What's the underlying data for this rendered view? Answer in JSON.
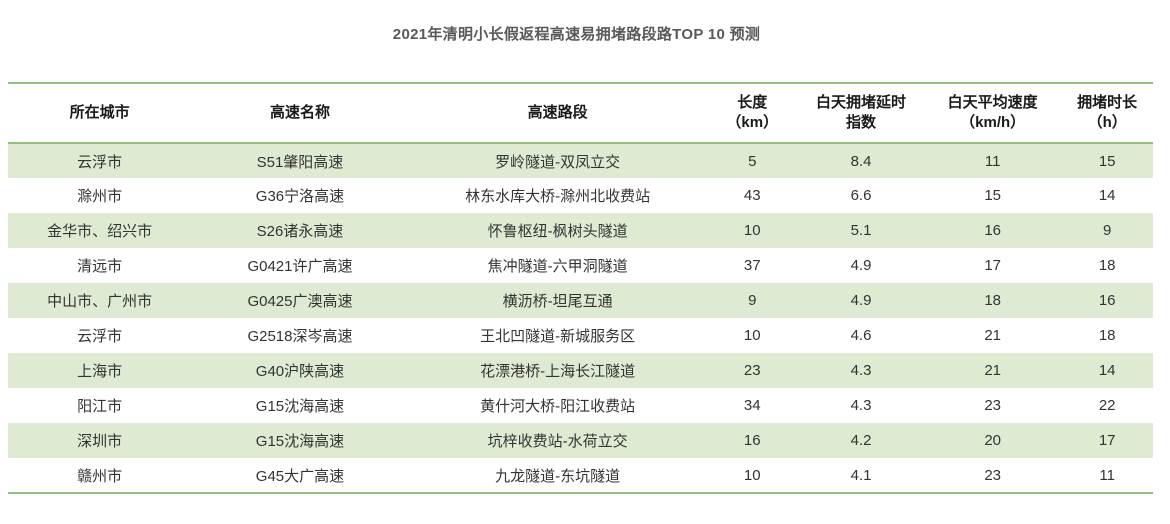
{
  "title": "2021年清明小长假返程高速易拥堵路段路TOP 10 预测",
  "colors": {
    "border_green": "#94be7d",
    "row_green": "#deebd2",
    "title_gray": "#595959",
    "header_text": "#1a1a1a",
    "cell_text": "#333333"
  },
  "table": {
    "headers": [
      "所在城市",
      "高速名称",
      "高速路段",
      "长度\n（km）",
      "白天拥堵延时\n指数",
      "白天平均速度\n（km/h）",
      "拥堵时长\n（h）"
    ]
  },
  "chart_data": {
    "type": "table",
    "title": "2021年清明小长假返程高速易拥堵路段路TOP 10 预测",
    "columns": [
      "所在城市",
      "高速名称",
      "高速路段",
      "长度（km）",
      "白天拥堵延时指数",
      "白天平均速度（km/h）",
      "拥堵时长（h）"
    ],
    "rows": [
      [
        "云浮市",
        "S51肇阳高速",
        "罗岭隧道-双凤立交",
        "5",
        "8.4",
        "11",
        "15"
      ],
      [
        "滁州市",
        "G36宁洛高速",
        "林东水库大桥-滁州北收费站",
        "43",
        "6.6",
        "15",
        "14"
      ],
      [
        "金华市、绍兴市",
        "S26诸永高速",
        "怀鲁枢纽-枫树头隧道",
        "10",
        "5.1",
        "16",
        "9"
      ],
      [
        "清远市",
        "G0421许广高速",
        "焦冲隧道-六甲洞隧道",
        "37",
        "4.9",
        "17",
        "18"
      ],
      [
        "中山市、广州市",
        "G0425广澳高速",
        "横沥桥-坦尾互通",
        "9",
        "4.9",
        "18",
        "16"
      ],
      [
        "云浮市",
        "G2518深岑高速",
        "王北凹隧道-新城服务区",
        "10",
        "4.6",
        "21",
        "18"
      ],
      [
        "上海市",
        "G40沪陕高速",
        "花漂港桥-上海长江隧道",
        "23",
        "4.3",
        "21",
        "14"
      ],
      [
        "阳江市",
        "G15沈海高速",
        "黄什河大桥-阳江收费站",
        "34",
        "4.3",
        "23",
        "22"
      ],
      [
        "深圳市",
        "G15沈海高速",
        "坑梓收费站-水荷立交",
        "16",
        "4.2",
        "20",
        "17"
      ],
      [
        "赣州市",
        "G45大广高速",
        "九龙隧道-东坑隧道",
        "10",
        "4.1",
        "23",
        "11"
      ]
    ]
  }
}
